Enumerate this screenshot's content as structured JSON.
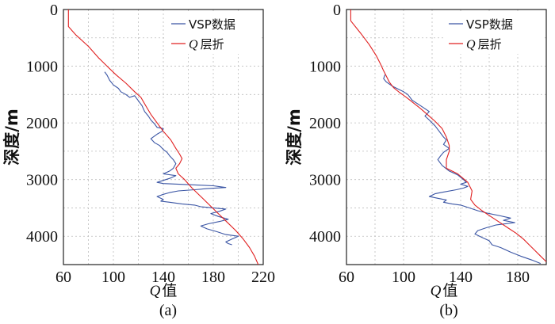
{
  "chart_data": [
    {
      "type": "line",
      "panel_label": "(a)",
      "xlabel": {
        "q": "Q",
        "rest": "值"
      },
      "ylabel": "深度/m",
      "xlim": [
        60,
        220
      ],
      "ylim": [
        0,
        4500
      ],
      "y_inverted": true,
      "xticks": [
        60,
        100,
        140,
        180,
        220
      ],
      "yticks": [
        0,
        1000,
        2000,
        3000,
        4000
      ],
      "grid": true,
      "legend_position": "top-right",
      "legend": [
        {
          "label": "VSP数据",
          "q": "",
          "rest": "VSP数据"
        },
        {
          "label": "Q层折",
          "q": "Q",
          "rest": "层折"
        }
      ],
      "series": [
        {
          "name": "VSP数据",
          "color": "#3a55a4",
          "points": [
            [
              93,
              1100
            ],
            [
              95,
              1160
            ],
            [
              97,
              1250
            ],
            [
              100,
              1330
            ],
            [
              104,
              1390
            ],
            [
              106,
              1450
            ],
            [
              110,
              1500
            ],
            [
              113,
              1550
            ],
            [
              117,
              1520
            ],
            [
              120,
              1610
            ],
            [
              123,
              1700
            ],
            [
              125,
              1800
            ],
            [
              128,
              1880
            ],
            [
              130,
              1950
            ],
            [
              133,
              2020
            ],
            [
              135,
              2080
            ],
            [
              140,
              2100
            ],
            [
              139,
              2150
            ],
            [
              135,
              2200
            ],
            [
              130,
              2280
            ],
            [
              133,
              2350
            ],
            [
              137,
              2400
            ],
            [
              140,
              2470
            ],
            [
              143,
              2520
            ],
            [
              145,
              2580
            ],
            [
              148,
              2650
            ],
            [
              150,
              2720
            ],
            [
              148,
              2800
            ],
            [
              145,
              2850
            ],
            [
              140,
              2900
            ],
            [
              150,
              2930
            ],
            [
              145,
              2980
            ],
            [
              135,
              3050
            ],
            [
              140,
              3070
            ],
            [
              160,
              3090
            ],
            [
              170,
              3100
            ],
            [
              180,
              3110
            ],
            [
              190,
              3140
            ],
            [
              175,
              3160
            ],
            [
              165,
              3180
            ],
            [
              152,
              3200
            ],
            [
              145,
              3230
            ],
            [
              140,
              3260
            ],
            [
              135,
              3300
            ],
            [
              140,
              3350
            ],
            [
              138,
              3380
            ],
            [
              145,
              3400
            ],
            [
              155,
              3430
            ],
            [
              165,
              3450
            ],
            [
              170,
              3480
            ],
            [
              180,
              3500
            ],
            [
              190,
              3520
            ],
            [
              185,
              3560
            ],
            [
              178,
              3600
            ],
            [
              184,
              3650
            ],
            [
              192,
              3700
            ],
            [
              185,
              3740
            ],
            [
              176,
              3780
            ],
            [
              170,
              3820
            ],
            [
              175,
              3870
            ],
            [
              183,
              3920
            ],
            [
              190,
              3970
            ],
            [
              200,
              4000
            ],
            [
              195,
              4050
            ],
            [
              190,
              4100
            ],
            [
              192,
              4130
            ],
            [
              195,
              4150
            ]
          ]
        },
        {
          "name": "Q层折",
          "color": "#e02020",
          "points": [
            [
              64,
              0
            ],
            [
              64,
              300
            ],
            [
              70,
              450
            ],
            [
              80,
              650
            ],
            [
              88,
              850
            ],
            [
              95,
              1000
            ],
            [
              102,
              1150
            ],
            [
              110,
              1300
            ],
            [
              117,
              1450
            ],
            [
              122,
              1550
            ],
            [
              126,
              1700
            ],
            [
              130,
              1850
            ],
            [
              135,
              2000
            ],
            [
              140,
              2150
            ],
            [
              146,
              2300
            ],
            [
              150,
              2450
            ],
            [
              153,
              2550
            ],
            [
              155,
              2630
            ],
            [
              153,
              2720
            ],
            [
              150,
              2800
            ],
            [
              152,
              2900
            ],
            [
              157,
              3000
            ],
            [
              163,
              3150
            ],
            [
              170,
              3300
            ],
            [
              177,
              3450
            ],
            [
              184,
              3600
            ],
            [
              191,
              3750
            ],
            [
              198,
              3900
            ],
            [
              204,
              4050
            ],
            [
              209,
              4200
            ],
            [
              213,
              4350
            ],
            [
              216,
              4500
            ]
          ]
        }
      ]
    },
    {
      "type": "line",
      "panel_label": "(b)",
      "xlabel": {
        "q": "Q",
        "rest": "值"
      },
      "ylabel": "深度/m",
      "xlim": [
        60,
        200
      ],
      "ylim": [
        0,
        4500
      ],
      "y_inverted": true,
      "xticks": [
        60,
        100,
        140,
        180
      ],
      "yticks": [
        0,
        1000,
        2000,
        3000,
        4000
      ],
      "grid": true,
      "legend_position": "top-right",
      "legend": [
        {
          "label": "VSP数据",
          "q": "",
          "rest": "VSP数据"
        },
        {
          "label": "Q层折",
          "q": "Q",
          "rest": "层折"
        }
      ],
      "series": [
        {
          "name": "VSP数据",
          "color": "#3a55a4",
          "points": [
            [
              87,
              1150
            ],
            [
              86,
              1220
            ],
            [
              88,
              1280
            ],
            [
              92,
              1350
            ],
            [
              96,
              1400
            ],
            [
              100,
              1450
            ],
            [
              103,
              1500
            ],
            [
              106,
              1600
            ],
            [
              112,
              1700
            ],
            [
              118,
              1800
            ],
            [
              115,
              1880
            ],
            [
              118,
              1950
            ],
            [
              122,
              2050
            ],
            [
              125,
              2150
            ],
            [
              128,
              2250
            ],
            [
              130,
              2300
            ],
            [
              128,
              2380
            ],
            [
              132,
              2450
            ],
            [
              128,
              2520
            ],
            [
              126,
              2580
            ],
            [
              124,
              2650
            ],
            [
              127,
              2750
            ],
            [
              132,
              2850
            ],
            [
              138,
              2920
            ],
            [
              142,
              3000
            ],
            [
              144,
              3050
            ],
            [
              140,
              3080
            ],
            [
              145,
              3120
            ],
            [
              142,
              3150
            ],
            [
              137,
              3180
            ],
            [
              128,
              3220
            ],
            [
              122,
              3250
            ],
            [
              118,
              3300
            ],
            [
              124,
              3330
            ],
            [
              130,
              3360
            ],
            [
              128,
              3400
            ],
            [
              134,
              3430
            ],
            [
              140,
              3450
            ],
            [
              146,
              3500
            ],
            [
              152,
              3550
            ],
            [
              160,
              3600
            ],
            [
              168,
              3640
            ],
            [
              175,
              3680
            ],
            [
              170,
              3720
            ],
            [
              178,
              3760
            ],
            [
              165,
              3800
            ],
            [
              158,
              3850
            ],
            [
              152,
              3900
            ],
            [
              150,
              3960
            ],
            [
              155,
              4020
            ],
            [
              160,
              4080
            ],
            [
              162,
              4150
            ],
            [
              168,
              4200
            ],
            [
              175,
              4280
            ],
            [
              182,
              4350
            ],
            [
              190,
              4420
            ],
            [
              196,
              4480
            ]
          ]
        },
        {
          "name": "Q层折",
          "color": "#e02020",
          "points": [
            [
              63,
              0
            ],
            [
              63,
              200
            ],
            [
              70,
              420
            ],
            [
              76,
              620
            ],
            [
              81,
              820
            ],
            [
              84,
              970
            ],
            [
              86,
              1080
            ],
            [
              88,
              1180
            ],
            [
              90,
              1280
            ],
            [
              93,
              1380
            ],
            [
              97,
              1460
            ],
            [
              102,
              1550
            ],
            [
              107,
              1650
            ],
            [
              112,
              1750
            ],
            [
              117,
              1860
            ],
            [
              122,
              1970
            ],
            [
              127,
              2100
            ],
            [
              130,
              2250
            ],
            [
              132,
              2400
            ],
            [
              132,
              2500
            ],
            [
              130,
              2650
            ],
            [
              130,
              2800
            ],
            [
              138,
              2900
            ],
            [
              145,
              3050
            ],
            [
              148,
              3200
            ],
            [
              147,
              3350
            ],
            [
              150,
              3450
            ],
            [
              155,
              3550
            ],
            [
              161,
              3650
            ],
            [
              167,
              3750
            ],
            [
              173,
              3850
            ],
            [
              179,
              3950
            ],
            [
              184,
              4050
            ],
            [
              188,
              4150
            ],
            [
              192,
              4250
            ],
            [
              196,
              4350
            ],
            [
              200,
              4450
            ]
          ]
        }
      ]
    }
  ]
}
